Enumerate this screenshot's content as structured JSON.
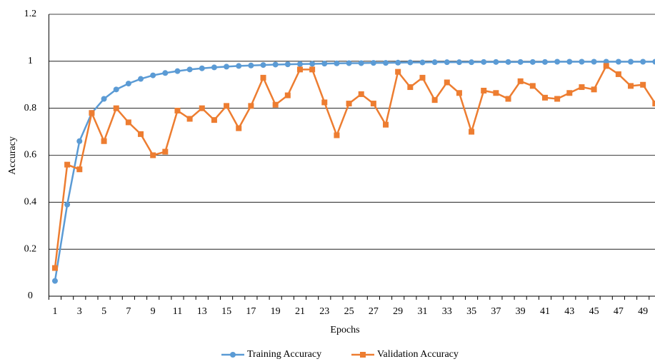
{
  "chart_data": {
    "type": "line",
    "x_label": "Epochs",
    "y_label": "Accuracy",
    "categories": [
      1,
      null,
      3,
      null,
      5,
      null,
      7,
      null,
      9,
      null,
      11,
      null,
      13,
      null,
      15,
      null,
      17,
      null,
      19,
      null,
      21,
      null,
      23,
      null,
      25,
      null,
      27,
      null,
      29,
      null,
      31,
      null,
      33,
      null,
      35,
      null,
      37,
      null,
      39,
      null,
      41,
      null,
      43,
      null,
      45,
      null,
      47,
      null,
      49,
      null
    ],
    "series": [
      {
        "name": "Training Accuracy",
        "color": "#5b9bd5",
        "marker": "circle",
        "values": [
          0.065,
          0.39,
          0.66,
          0.78,
          0.84,
          0.88,
          0.905,
          0.925,
          0.94,
          0.95,
          0.958,
          0.965,
          0.97,
          0.974,
          0.977,
          0.98,
          0.982,
          0.984,
          0.986,
          0.987,
          0.988,
          0.989,
          0.99,
          0.991,
          0.992,
          0.992,
          0.993,
          0.993,
          0.994,
          0.995,
          0.995,
          0.996,
          0.996,
          0.996,
          0.996,
          0.997,
          0.997,
          0.997,
          0.997,
          0.997,
          0.997,
          0.998,
          0.998,
          0.998,
          0.998,
          0.998,
          0.998,
          0.998,
          0.998,
          0.998
        ]
      },
      {
        "name": "Validation Accuracy",
        "color": "#ed7d31",
        "marker": "square",
        "values": [
          0.12,
          0.56,
          0.54,
          0.78,
          0.66,
          0.8,
          0.74,
          0.69,
          0.6,
          0.615,
          0.79,
          0.755,
          0.8,
          0.75,
          0.81,
          0.715,
          0.81,
          0.93,
          0.815,
          0.855,
          0.965,
          0.965,
          0.825,
          0.685,
          0.82,
          0.86,
          0.82,
          0.73,
          0.955,
          0.89,
          0.93,
          0.835,
          0.91,
          0.865,
          0.7,
          0.875,
          0.865,
          0.84,
          0.915,
          0.895,
          0.845,
          0.84,
          0.865,
          0.89,
          0.88,
          0.98,
          0.945,
          0.895,
          0.9,
          0.82
        ]
      }
    ],
    "ylim": [
      0,
      1.2
    ],
    "yticks": [
      0,
      0.2,
      0.4,
      0.6,
      0.8,
      1,
      1.2
    ],
    "grid": true,
    "legend": "bottom"
  }
}
